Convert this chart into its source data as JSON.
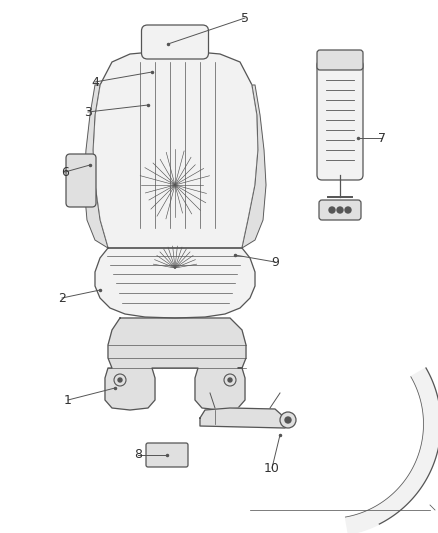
{
  "bg_color": "#ffffff",
  "line_color": "#555555",
  "label_color": "#333333",
  "seat_color": "#f2f2f2",
  "seat_dark": "#e0e0e0"
}
